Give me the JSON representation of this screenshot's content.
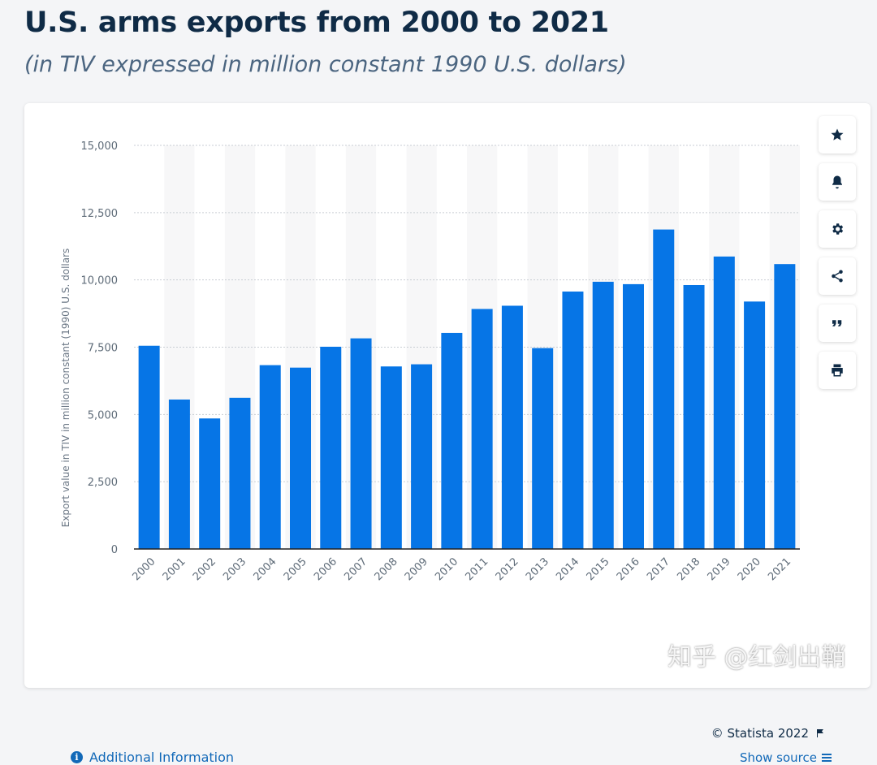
{
  "header": {
    "title": "U.S. arms exports from 2000 to 2021",
    "subtitle": "(in TIV expressed in million constant 1990 U.S. dollars)"
  },
  "chart_data": {
    "type": "bar",
    "title": "U.S. arms exports from 2000 to 2021",
    "subtitle": "(in TIV expressed in million constant 1990 U.S. dollars)",
    "xlabel": "",
    "ylabel": "Export value in TIV in million constant (1990) U.S. dollars",
    "categories": [
      "2000",
      "2001",
      "2002",
      "2003",
      "2004",
      "2005",
      "2006",
      "2007",
      "2008",
      "2009",
      "2010",
      "2011",
      "2012",
      "2013",
      "2014",
      "2015",
      "2016",
      "2017",
      "2018",
      "2019",
      "2020",
      "2021"
    ],
    "values": [
      7553,
      5554,
      4851,
      5619,
      6832,
      6740,
      7516,
      7828,
      6784,
      6864,
      8030,
      8920,
      9040,
      7466,
      9567,
      9931,
      9842,
      11873,
      9809,
      10869,
      9196,
      10588
    ],
    "ylim": [
      0,
      15000
    ],
    "yticks": [
      0,
      2500,
      5000,
      7500,
      10000,
      12500,
      15000
    ],
    "ytick_labels": [
      "0",
      "2,500",
      "5,000",
      "7,500",
      "10,000",
      "12,500",
      "15,000"
    ],
    "grid": true,
    "bar_color": "#0675e6",
    "legend": "none"
  },
  "toolbar": {
    "items": [
      {
        "name": "favorite",
        "icon": "star-icon"
      },
      {
        "name": "notification",
        "icon": "bell-icon"
      },
      {
        "name": "settings",
        "icon": "gear-icon"
      },
      {
        "name": "share",
        "icon": "share-icon"
      },
      {
        "name": "cite",
        "icon": "quote-icon"
      },
      {
        "name": "print",
        "icon": "printer-icon"
      }
    ]
  },
  "footer": {
    "credit": "© Statista 2022",
    "additional_info": "Additional Information",
    "show_source": "Show source"
  },
  "watermark": {
    "text": "知乎 @红剑出鞘"
  },
  "colors": {
    "accent": "#0675e6",
    "link": "#1269b8",
    "title": "#0f2b46"
  }
}
